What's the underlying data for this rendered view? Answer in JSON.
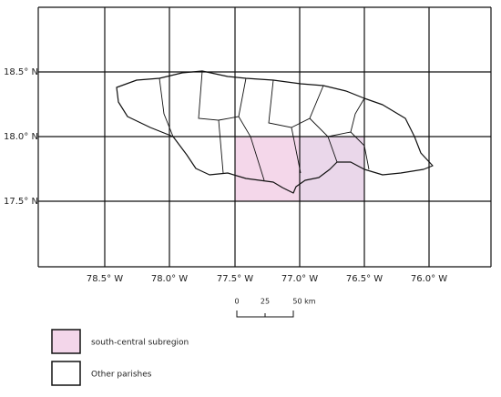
{
  "map": {
    "latitude_labels": [
      "18.5° N",
      "18.0° N",
      "17.5° N"
    ],
    "longitude_labels": [
      "78.5° W",
      "78.0° W",
      "77.5° W",
      "77.0° W",
      "76.5° W",
      "76.0° W"
    ],
    "scale_bar": {
      "labels": [
        "0",
        "25",
        "50 km"
      ]
    }
  },
  "legend": {
    "items": [
      {
        "label": "south-central subregion",
        "color": "#f3d6ea"
      },
      {
        "label": "Other parishes",
        "color": "#ffffff"
      }
    ]
  }
}
